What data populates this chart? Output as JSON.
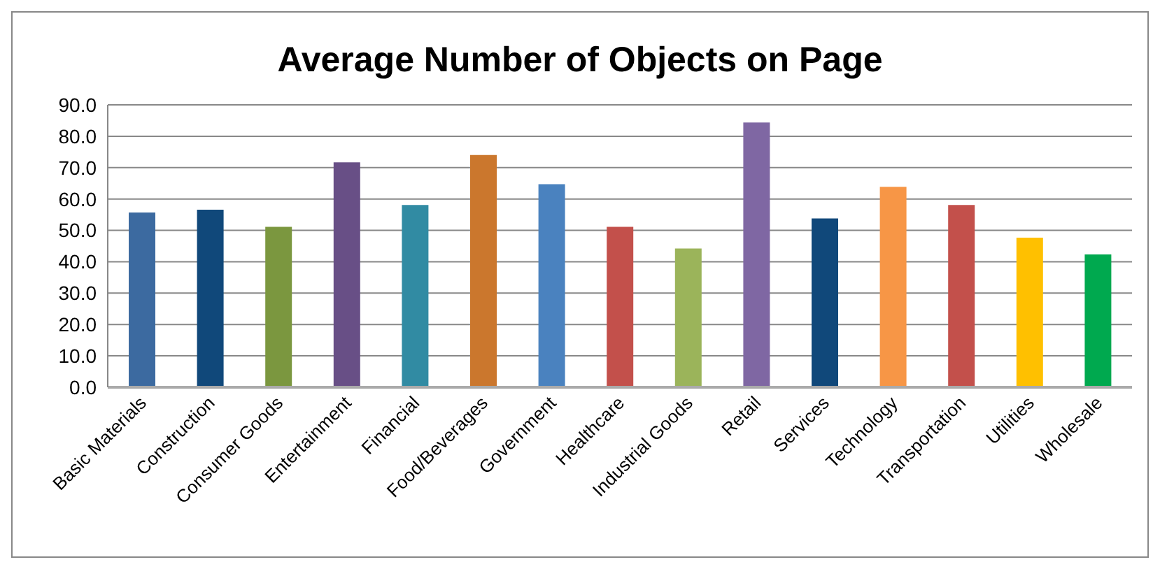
{
  "chart_data": {
    "type": "bar",
    "title": "Average Number of Objects on Page",
    "categories": [
      "Basic Materials",
      "Construction",
      "Consumer Goods",
      "Entertainment",
      "Financial",
      "Food/Beverages",
      "Government",
      "Healthcare",
      "Industrial Goods",
      "Retail",
      "Services",
      "Technology",
      "Transportation",
      "Utilities",
      "Wholesale"
    ],
    "values": [
      55.7,
      56.6,
      51.1,
      71.7,
      58.1,
      74.0,
      64.7,
      51.1,
      44.2,
      84.4,
      53.8,
      63.9,
      58.1,
      47.7,
      42.3
    ],
    "colors": [
      "#3c6aa0",
      "#10487a",
      "#7b973f",
      "#684f86",
      "#318ba3",
      "#cb772d",
      "#4a82bf",
      "#c3504b",
      "#9bb45a",
      "#7f67a3",
      "#10487a",
      "#f79646",
      "#c3504b",
      "#ffc000",
      "#00a94f"
    ],
    "ylim": [
      0,
      90
    ],
    "yticks": [
      {
        "value": 0,
        "label": "0.0"
      },
      {
        "value": 10,
        "label": "10.0"
      },
      {
        "value": 20,
        "label": "20.0"
      },
      {
        "value": 30,
        "label": "30.0"
      },
      {
        "value": 40,
        "label": "40.0"
      },
      {
        "value": 50,
        "label": "50.0"
      },
      {
        "value": 60,
        "label": "60.0"
      },
      {
        "value": 70,
        "label": "70.0"
      },
      {
        "value": 80,
        "label": "80.0"
      },
      {
        "value": 90,
        "label": "90.0"
      }
    ],
    "grid": "y"
  }
}
